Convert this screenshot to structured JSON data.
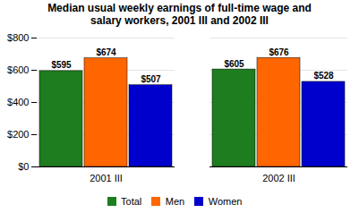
{
  "chart_data": {
    "type": "bar",
    "title": "Median usual weekly earnings of full-time wage and\nsalary workers, 2001 III and 2002 III",
    "categories": [
      "2001 III",
      "2002 III"
    ],
    "series": [
      {
        "name": "Total",
        "color": "#1e7d1e",
        "values": [
          595,
          605
        ],
        "value_labels": [
          "$595",
          "$605"
        ]
      },
      {
        "name": "Men",
        "color": "#ff6600",
        "values": [
          674,
          676
        ],
        "value_labels": [
          "$674",
          "$676"
        ]
      },
      {
        "name": "Women",
        "color": "#0000cc",
        "values": [
          507,
          528
        ],
        "value_labels": [
          "$507",
          "$528"
        ]
      }
    ],
    "ylim": [
      0,
      800
    ],
    "yticks": [
      {
        "value": 0,
        "label": "$0"
      },
      {
        "value": 200,
        "label": "$200"
      },
      {
        "value": 400,
        "label": "$400"
      },
      {
        "value": 600,
        "label": "$600"
      },
      {
        "value": 800,
        "label": "$800"
      }
    ],
    "grid": true,
    "legend": "bottom",
    "data_labels": true
  }
}
